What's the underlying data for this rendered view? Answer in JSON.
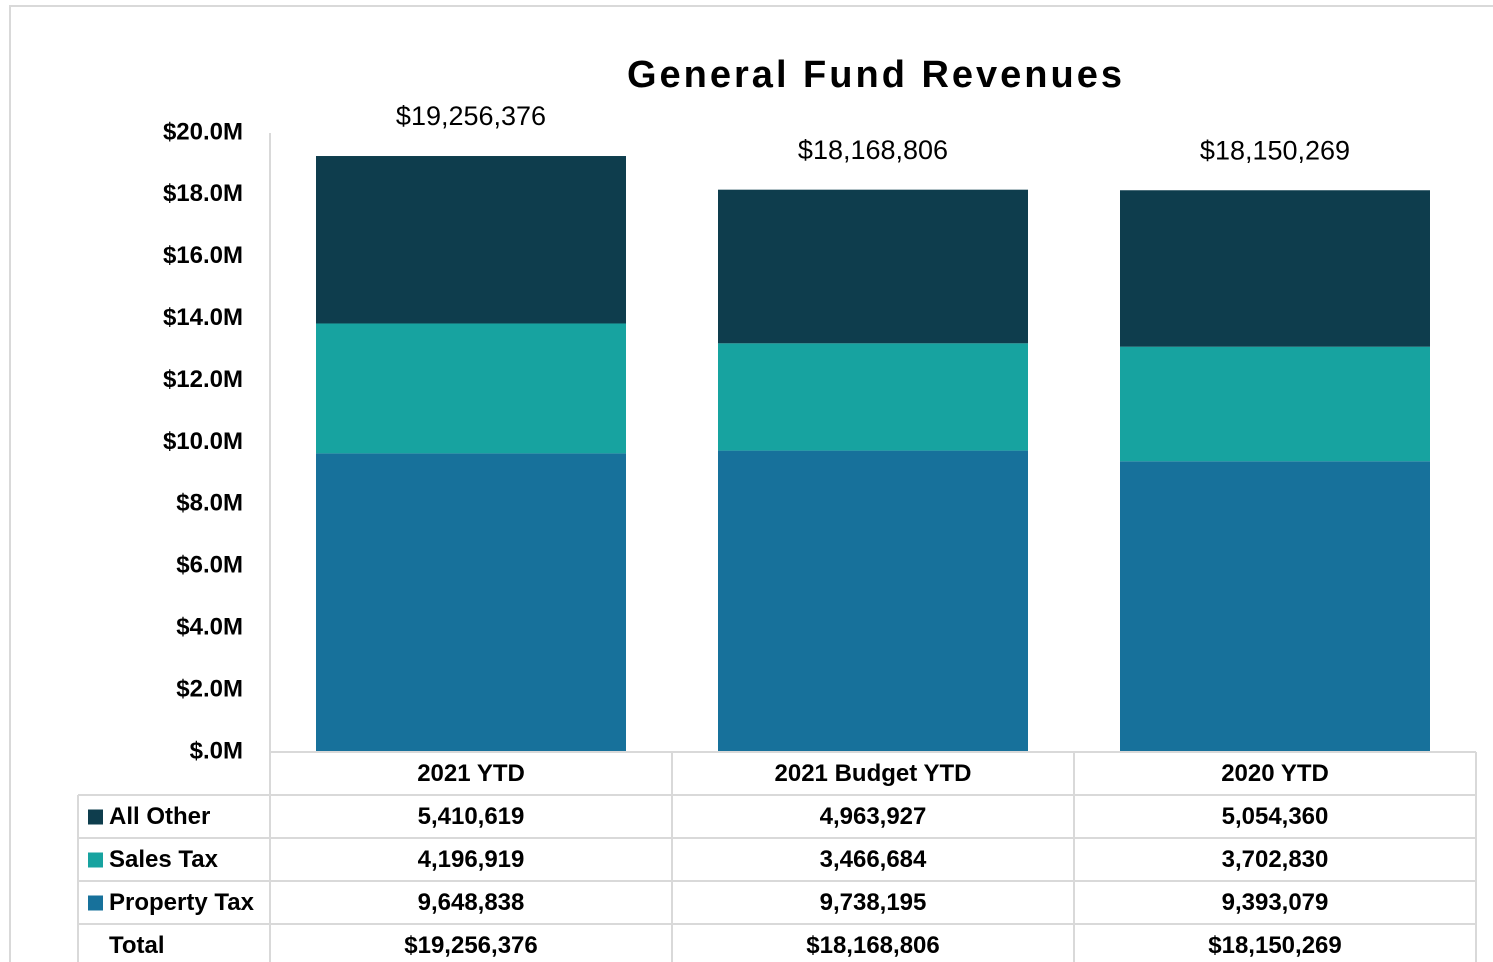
{
  "chart_data": {
    "type": "stacked_bar",
    "title": "General Fund Revenues",
    "categories": [
      "2021 YTD",
      "2021 Budget YTD",
      "2020 YTD"
    ],
    "series": [
      {
        "name": "Property Tax",
        "color": "#17719b",
        "values": [
          9648838,
          9738195,
          9393079
        ],
        "value_labels": [
          "9,648,838",
          "9,738,195",
          "9,393,079"
        ]
      },
      {
        "name": "Sales Tax",
        "color": "#17a3a0",
        "values": [
          4196919,
          3466684,
          3702830
        ],
        "value_labels": [
          "4,196,919",
          "3,466,684",
          "3,702,830"
        ]
      },
      {
        "name": "All Other",
        "color": "#0e3d4d",
        "values": [
          5410619,
          4963927,
          5054360
        ],
        "value_labels": [
          "5,410,619",
          "4,963,927",
          "5,054,360"
        ]
      }
    ],
    "totals": {
      "name": "Total",
      "values": [
        19256376,
        18168806,
        18150269
      ],
      "value_labels": [
        "$19,256,376",
        "$18,168,806",
        "$18,150,269"
      ]
    },
    "ylim": [
      0,
      20000000
    ],
    "yticks": [
      {
        "value": 0,
        "label": "$.0M"
      },
      {
        "value": 2000000,
        "label": "$2.0M"
      },
      {
        "value": 4000000,
        "label": "$4.0M"
      },
      {
        "value": 6000000,
        "label": "$6.0M"
      },
      {
        "value": 8000000,
        "label": "$8.0M"
      },
      {
        "value": 10000000,
        "label": "$10.0M"
      },
      {
        "value": 12000000,
        "label": "$12.0M"
      },
      {
        "value": 14000000,
        "label": "$14.0M"
      },
      {
        "value": 16000000,
        "label": "$16.0M"
      },
      {
        "value": 18000000,
        "label": "$18.0M"
      },
      {
        "value": 20000000,
        "label": "$20.0M"
      }
    ],
    "grid": false,
    "data_table": true
  }
}
